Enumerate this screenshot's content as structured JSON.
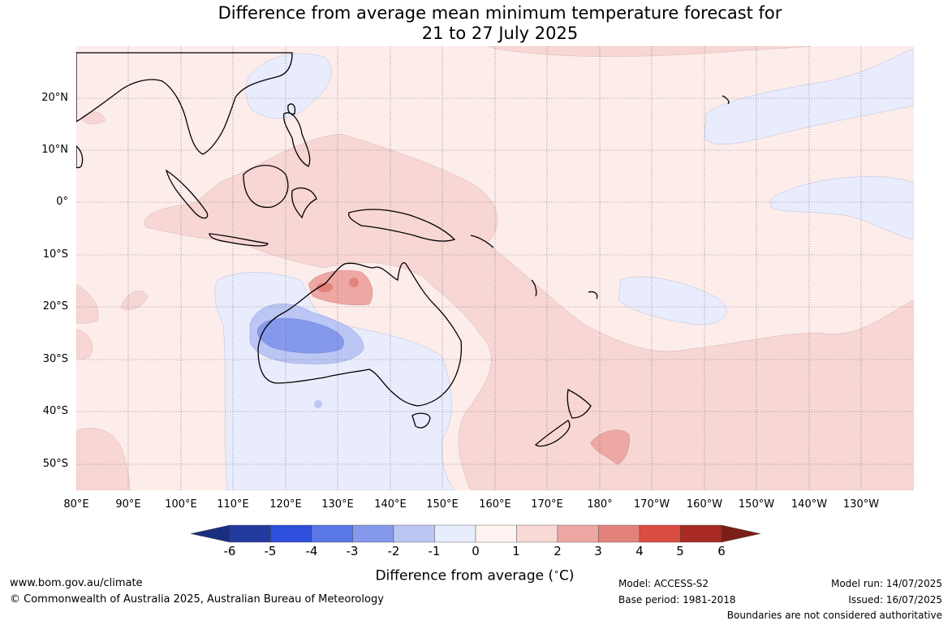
{
  "title": {
    "line1": "Difference from average mean minimum temperature forecast for",
    "line2": "21 to 27 July 2025"
  },
  "map": {
    "lat_labels": [
      "20°N",
      "10°N",
      "0°",
      "10°S",
      "20°S",
      "30°S",
      "40°S",
      "50°S"
    ],
    "lon_labels": [
      "80°E",
      "90°E",
      "100°E",
      "110°E",
      "120°E",
      "130°E",
      "140°E",
      "150°E",
      "160°E",
      "170°E",
      "180°",
      "170°W",
      "160°W",
      "150°W",
      "140°W",
      "130°W"
    ]
  },
  "colorbar": {
    "ticks": [
      "-6",
      "-5",
      "-4",
      "-3",
      "-2",
      "-1",
      "0",
      "1",
      "2",
      "3",
      "4",
      "5",
      "6"
    ],
    "colors": [
      "#233a9e",
      "#2d4fdc",
      "#5a77e6",
      "#8599ec",
      "#bcc6f4",
      "#e8edfc",
      "#fff3f1",
      "#f8d9d6",
      "#eda8a4",
      "#e3827a",
      "#da4b40",
      "#a82a23"
    ],
    "under_color": "#1a2d80",
    "over_color": "#7a1e17",
    "title": "Difference from average (",
    "title_unit": "°C",
    "title_end": ")"
  },
  "footer": {
    "website": "www.bom.gov.au/climate",
    "copyright": "© Commonwealth of Australia 2025, Australian Bureau of Meteorology",
    "model": "Model: ACCESS-S2",
    "base_period": "Base period: 1981-2018",
    "model_run": "Model run: 14/07/2025",
    "issued": "Issued: 16/07/2025",
    "disclaimer": "Boundaries are not considered authoritative"
  }
}
